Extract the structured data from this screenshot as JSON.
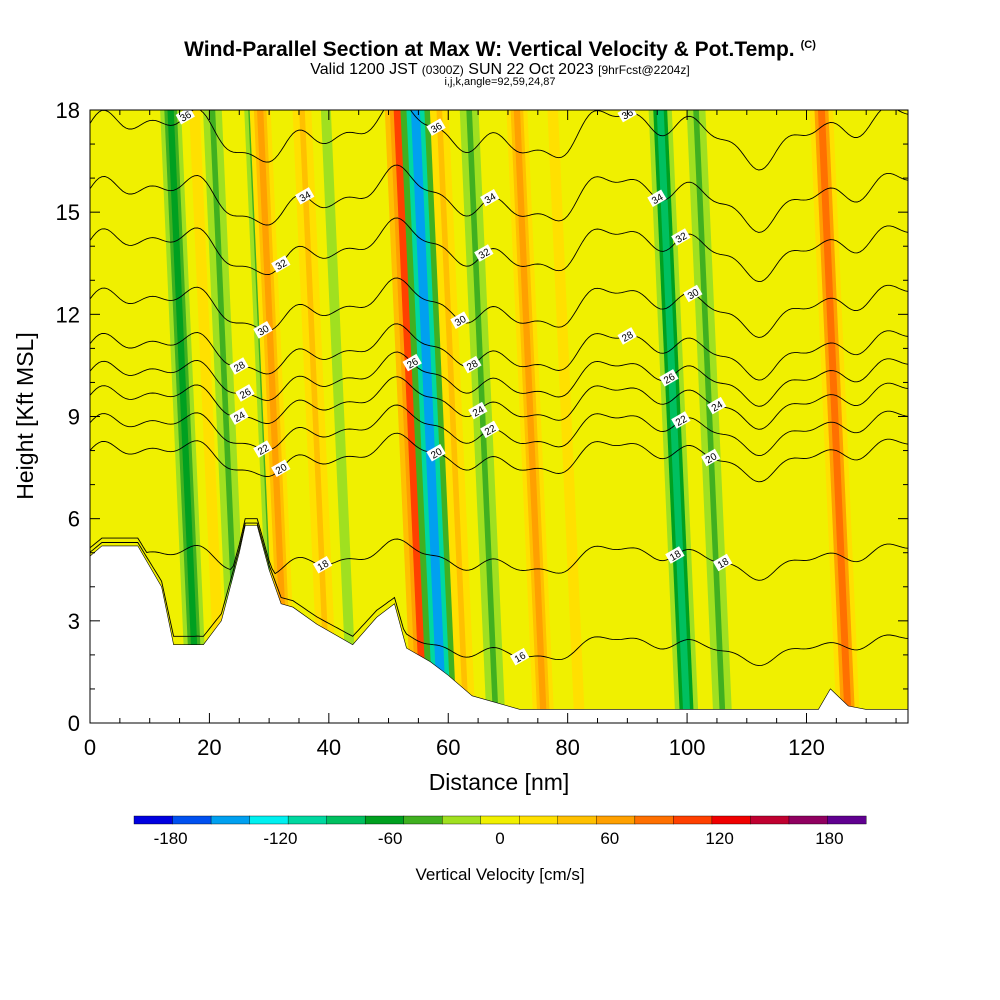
{
  "header": {
    "title": "Wind-Parallel Section at Max W: Vertical Velocity & Pot.Temp.",
    "copyright": "(C)",
    "valid_prefix": "Valid 1200 JST",
    "valid_utc": "(0300Z)",
    "valid_date": "SUN 22 Oct 2023",
    "forecast": "[9hrFcst@2204z]",
    "ijk": "i,j,k,angle=92,59,24,87"
  },
  "chart_data": {
    "type": "heatmap",
    "xlabel": "Distance [nm]",
    "ylabel": "Height [Kft MSL]",
    "xlim": [
      0,
      137
    ],
    "ylim": [
      0,
      18
    ],
    "x_ticks": [
      0,
      20,
      40,
      60,
      80,
      100,
      120
    ],
    "y_ticks": [
      0,
      3,
      6,
      9,
      12,
      15,
      18
    ],
    "colorbar": {
      "label": "Vertical Velocity [cm/s]",
      "ticks": [
        -180,
        -120,
        -60,
        0,
        60,
        120,
        180
      ],
      "range": [
        -200,
        200
      ],
      "colors": [
        "#0000e0",
        "#0050f0",
        "#00a0f0",
        "#00f0f0",
        "#00d8a0",
        "#00c060",
        "#00a020",
        "#40b020",
        "#a0e020",
        "#f0f000",
        "#ffe000",
        "#ffc000",
        "#ffa000",
        "#ff7000",
        "#ff4000",
        "#f00000",
        "#c00030",
        "#900060",
        "#600090"
      ]
    },
    "columns": [
      {
        "x": 15,
        "w": -60
      },
      {
        "x": 19,
        "w": 30
      },
      {
        "x": 22,
        "w": -40
      },
      {
        "x": 29,
        "w": -50
      },
      {
        "x": 30,
        "w": 60
      },
      {
        "x": 37,
        "w": 40
      },
      {
        "x": 41,
        "w": -20
      },
      {
        "x": 53,
        "w": 100
      },
      {
        "x": 56,
        "w": -140
      },
      {
        "x": 60,
        "w": 40
      },
      {
        "x": 65,
        "w": -40
      },
      {
        "x": 73,
        "w": 60
      },
      {
        "x": 79,
        "w": 30
      },
      {
        "x": 97,
        "w": -80
      },
      {
        "x": 103,
        "w": -40
      },
      {
        "x": 124,
        "w": 80
      }
    ],
    "terrain": [
      [
        0,
        4.9
      ],
      [
        2,
        5.2
      ],
      [
        8,
        5.2
      ],
      [
        12,
        4.0
      ],
      [
        14,
        2.3
      ],
      [
        19,
        2.3
      ],
      [
        22,
        3.0
      ],
      [
        25,
        5.0
      ],
      [
        26,
        5.8
      ],
      [
        28,
        5.8
      ],
      [
        30,
        4.5
      ],
      [
        32,
        3.5
      ],
      [
        34,
        3.4
      ],
      [
        38,
        2.9
      ],
      [
        44,
        2.3
      ],
      [
        48,
        3.1
      ],
      [
        51,
        3.5
      ],
      [
        53,
        2.2
      ],
      [
        57,
        1.8
      ],
      [
        60,
        1.4
      ],
      [
        64,
        0.8
      ],
      [
        72,
        0.4
      ],
      [
        122,
        0.4
      ],
      [
        124,
        1.0
      ],
      [
        127,
        0.5
      ],
      [
        130,
        0.4
      ],
      [
        137,
        0.4
      ]
    ],
    "theta_contours": [
      {
        "value": "16",
        "base": 2.2,
        "label_x": 72
      },
      {
        "value": "18",
        "base": 4.8,
        "label_x": 39
      },
      {
        "value": "18",
        "base": 4.8,
        "label_x": 98
      },
      {
        "value": "18",
        "base": 4.8,
        "label_x": 106
      },
      {
        "value": "20",
        "base": 7.8,
        "label_x": 32
      },
      {
        "value": "20",
        "base": 7.8,
        "label_x": 58
      },
      {
        "value": "20",
        "base": 7.8,
        "label_x": 104
      },
      {
        "value": "22",
        "base": 8.6,
        "label_x": 29
      },
      {
        "value": "22",
        "base": 8.6,
        "label_x": 67
      },
      {
        "value": "22",
        "base": 8.6,
        "label_x": 99
      },
      {
        "value": "24",
        "base": 9.4,
        "label_x": 25
      },
      {
        "value": "24",
        "base": 9.4,
        "label_x": 65
      },
      {
        "value": "24",
        "base": 9.4,
        "label_x": 105
      },
      {
        "value": "26",
        "base": 10.1,
        "label_x": 26
      },
      {
        "value": "26",
        "base": 10.1,
        "label_x": 54
      },
      {
        "value": "26",
        "base": 10.1,
        "label_x": 97
      },
      {
        "value": "28",
        "base": 10.9,
        "label_x": 25
      },
      {
        "value": "28",
        "base": 10.9,
        "label_x": 64
      },
      {
        "value": "28",
        "base": 10.9,
        "label_x": 90
      },
      {
        "value": "30",
        "base": 12.2,
        "label_x": 29
      },
      {
        "value": "30",
        "base": 12.2,
        "label_x": 62
      },
      {
        "value": "30",
        "base": 12.2,
        "label_x": 101
      },
      {
        "value": "32",
        "base": 13.9,
        "label_x": 32
      },
      {
        "value": "32",
        "base": 13.9,
        "label_x": 66
      },
      {
        "value": "32",
        "base": 13.9,
        "label_x": 99
      },
      {
        "value": "34",
        "base": 15.4,
        "label_x": 36
      },
      {
        "value": "34",
        "base": 15.4,
        "label_x": 67
      },
      {
        "value": "34",
        "base": 15.4,
        "label_x": 95
      },
      {
        "value": "36",
        "base": 17.3,
        "label_x": 16
      },
      {
        "value": "36",
        "base": 17.3,
        "label_x": 58
      },
      {
        "value": "36",
        "base": 17.3,
        "label_x": 90
      }
    ]
  }
}
